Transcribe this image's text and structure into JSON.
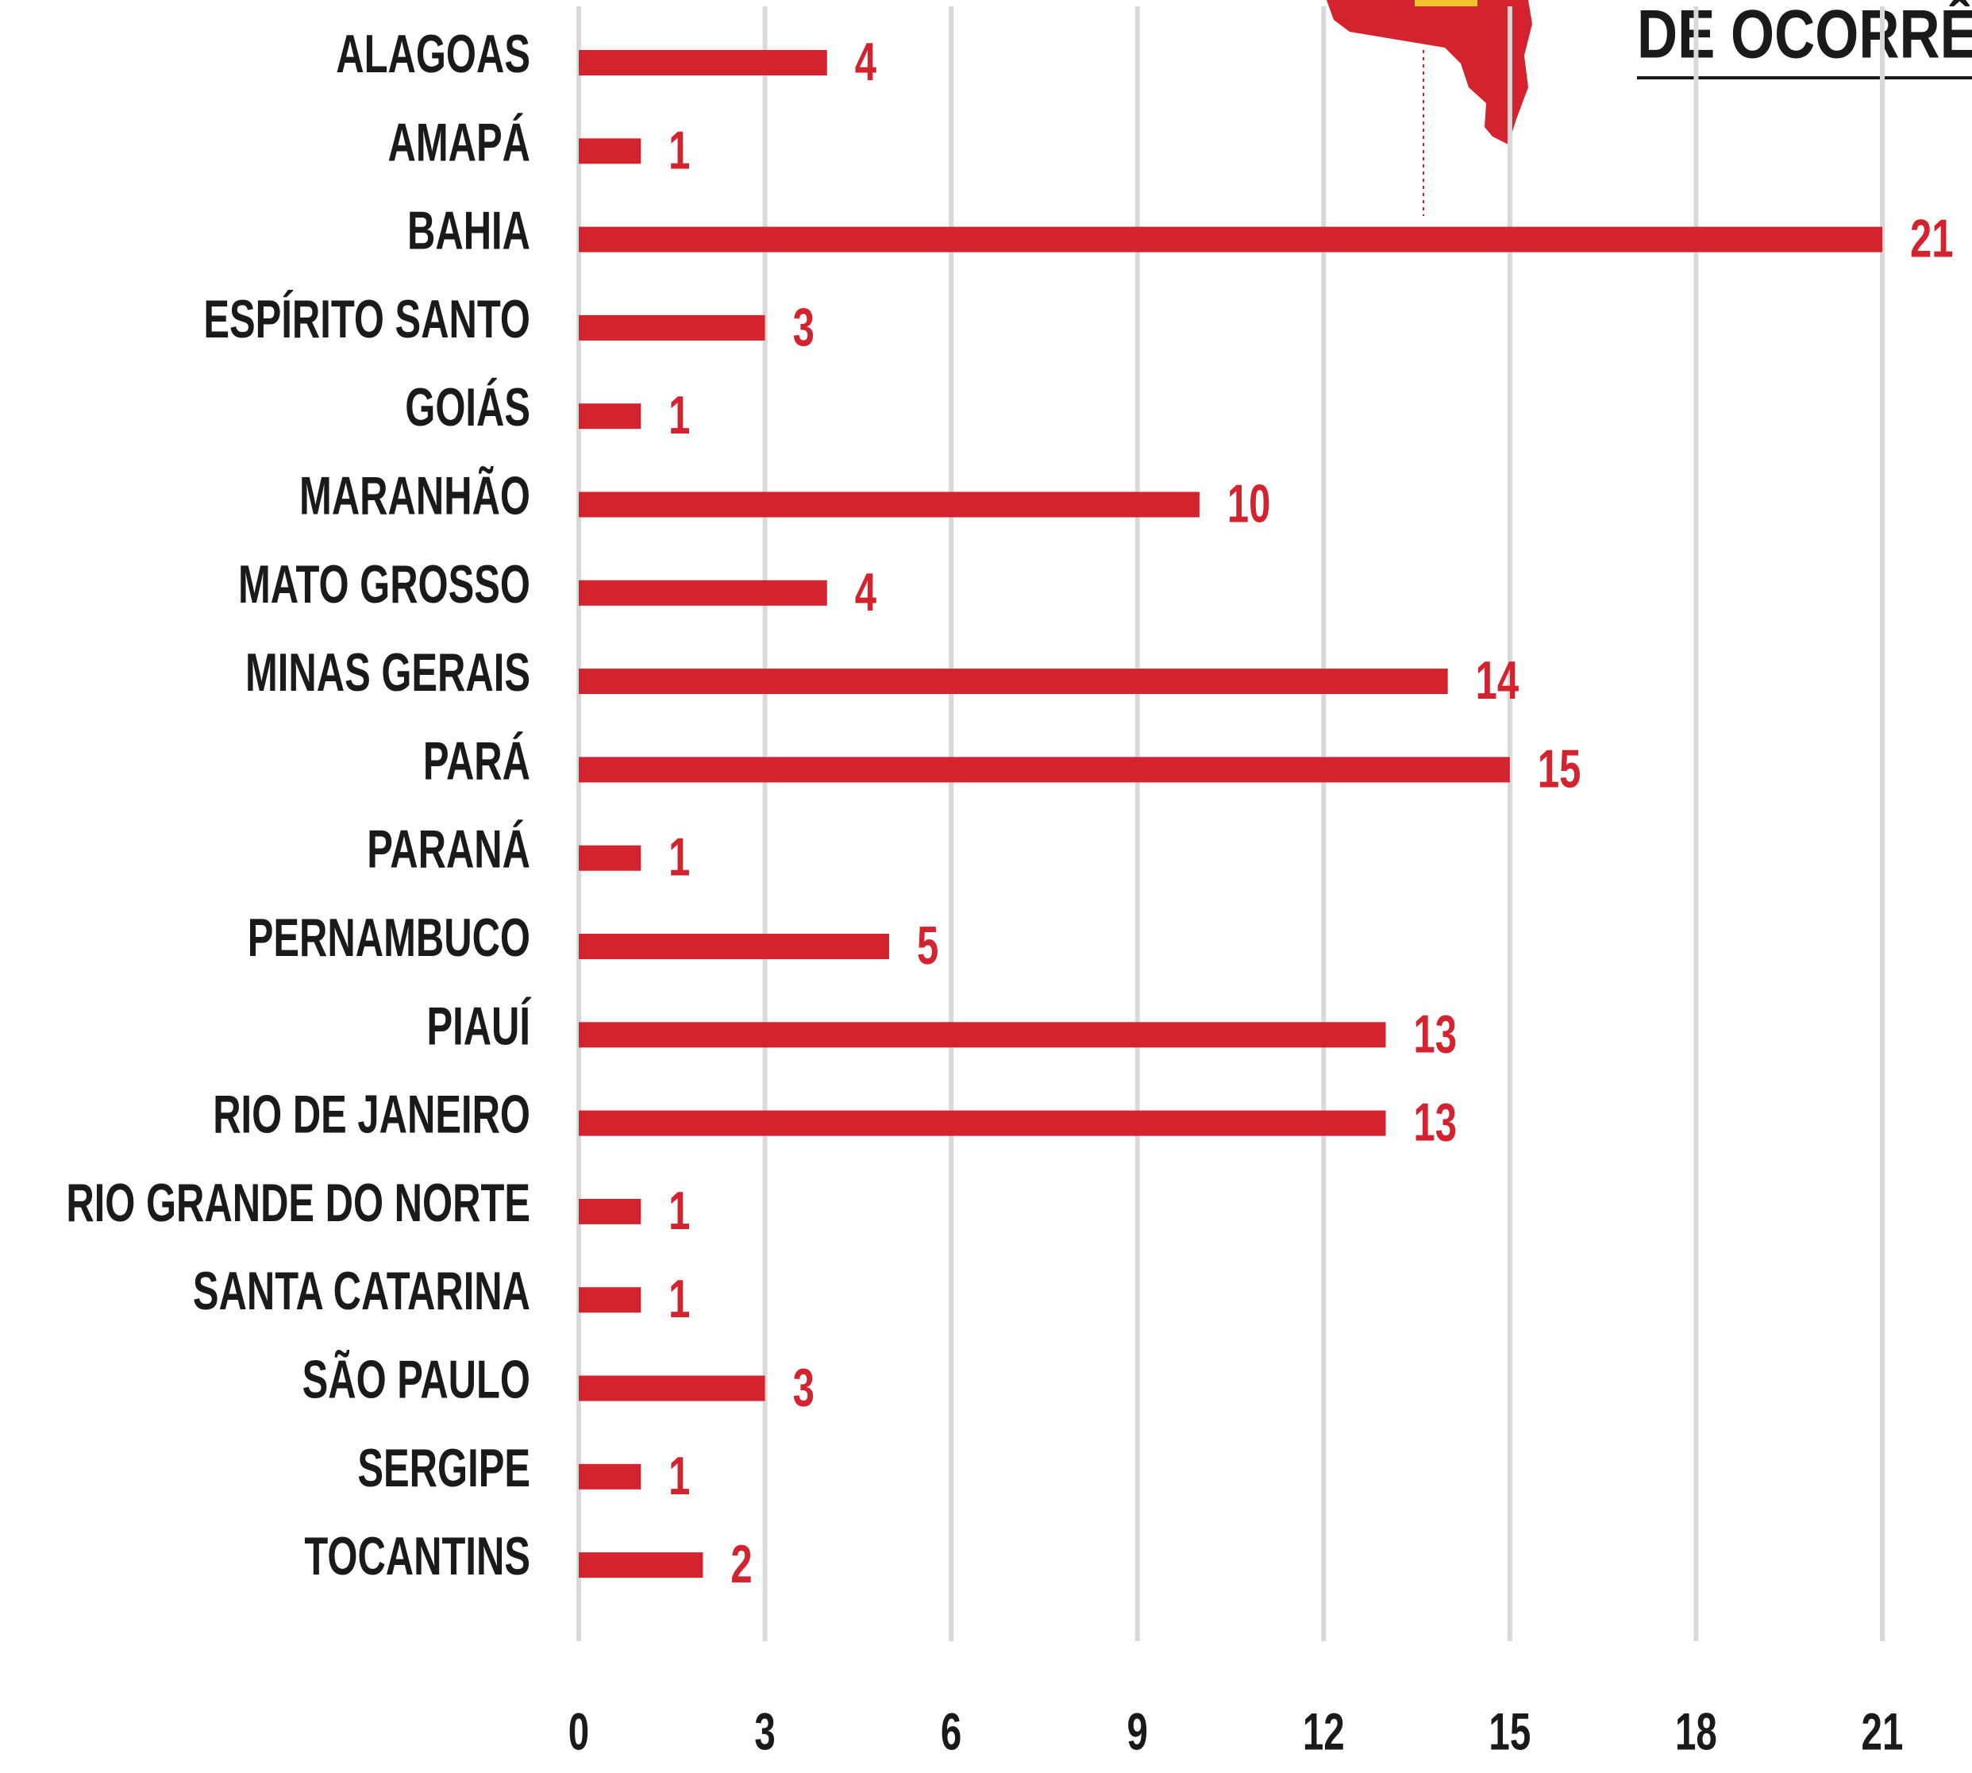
{
  "chart_data": {
    "type": "bar",
    "orientation": "horizontal",
    "title": "DE OCORRÊN",
    "categories": [
      "ALAGOAS",
      "AMAPÁ",
      "BAHIA",
      "ESPÍRITO SANTO",
      "GOIÁS",
      "MARANHÃO",
      "MATO GROSSO",
      "MINAS GERAIS",
      "PARÁ",
      "PARANÁ",
      "PERNAMBUCO",
      "PIAUÍ",
      "RIO DE JANEIRO",
      "RIO GRANDE DO NORTE",
      "SANTA CATARINA",
      "SÃO PAULO",
      "SERGIPE",
      "TOCANTINS"
    ],
    "values": [
      4,
      1,
      21,
      3,
      1,
      10,
      4,
      14,
      15,
      1,
      5,
      13,
      13,
      1,
      1,
      3,
      1,
      2
    ],
    "color": "#d3232e",
    "xlim": [
      0,
      21
    ],
    "xticks": [
      0,
      3,
      6,
      9,
      12,
      15,
      18,
      21
    ],
    "grid": true
  }
}
